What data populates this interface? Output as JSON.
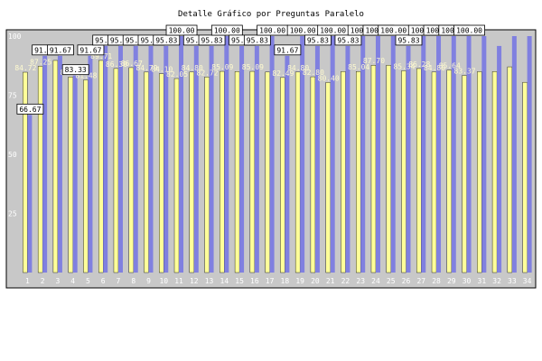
{
  "chart_data": {
    "type": "bar",
    "title": "Detalle Gráfico por Preguntas Paralelo",
    "xlabel": "",
    "ylabel": "",
    "ylim": [
      0,
      100
    ],
    "yticks": [
      25,
      50,
      75,
      100
    ],
    "grid": false,
    "legend": "none",
    "categories": [
      "1",
      "2",
      "3",
      "4",
      "5",
      "6",
      "7",
      "8",
      "9",
      "10",
      "11",
      "12",
      "13",
      "14",
      "15",
      "16",
      "17",
      "18",
      "19",
      "20",
      "21",
      "22",
      "23",
      "24",
      "25",
      "26",
      "27",
      "28",
      "29",
      "30",
      "31",
      "32",
      "33",
      "34"
    ],
    "series": [
      {
        "color": "#8080e0",
        "values": [
          66.67,
          91.67,
          91.67,
          83.33,
          91.67,
          95.83,
          95.83,
          95.83,
          95.83,
          95.83,
          100,
          95.83,
          95.83,
          100,
          95.83,
          95.83,
          100,
          91.67,
          100,
          95.83,
          100,
          95.83,
          100,
          100,
          100,
          95.83,
          100,
          100,
          100,
          100,
          100,
          95.83,
          100,
          100
        ]
      },
      {
        "color": "#ffff99",
        "values": [
          84.72,
          87.25,
          89.71,
          82.74,
          81.48,
          89.71,
          86.3,
          86.67,
          84.79,
          84.1,
          82.05,
          84.8,
          82.72,
          85.09,
          85.0,
          85.09,
          84.8,
          82.49,
          84.8,
          82.8,
          80.4,
          85.04,
          85.04,
          87.7,
          87.7,
          85.34,
          86.28,
          84.8,
          85.64,
          83.37,
          84.96,
          85.0,
          87.0,
          80.47
        ]
      }
    ],
    "value_labels_series1": [
      "66.67",
      "91.67",
      "91.67",
      "83.33",
      "91.67",
      "95.83",
      "95.83",
      "95.83",
      "95.83",
      "95.83",
      "100.00",
      "95.83",
      "95.83",
      "100.00",
      "95.83",
      "95.83",
      "100.00",
      "91.67",
      "100.00",
      "95.83",
      "100.00",
      "95.83",
      "100.00",
      "100.00",
      "100.00",
      "95.83",
      "100.00",
      "100.00",
      "100.00",
      "100.00",
      "",
      "",
      "",
      ""
    ],
    "value_labels_series2": [
      "84.72",
      "87.25",
      "",
      "82.74",
      "81.48",
      "89.71",
      "86.30",
      "86.67",
      "84.79",
      "84.10",
      "82.05",
      "84.80",
      "82.72",
      "85.09",
      "",
      "85.09",
      "",
      "82.49",
      "84.80",
      "82.80",
      "80.40",
      "",
      "85.04",
      "87.70",
      "",
      "85.34",
      "86.28",
      "84.80",
      "85.64",
      "83.37",
      "",
      "",
      "",
      ""
    ],
    "colors": {
      "plot_bg": "#c8c8c8",
      "axis_text": "#ffffff",
      "label_box": "#ffffff"
    }
  }
}
